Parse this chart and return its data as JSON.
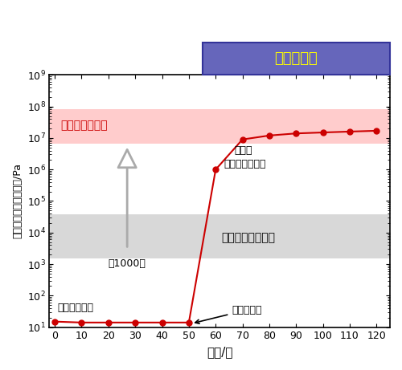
{
  "x": [
    0,
    10,
    20,
    30,
    40,
    50,
    60,
    70,
    80,
    90,
    100,
    110,
    120
  ],
  "y": [
    15,
    14,
    14,
    14,
    14,
    14,
    1000000,
    9000000,
    12000000,
    14000000,
    15000000,
    16000000,
    17000000
  ],
  "xlabel": "时间/秒",
  "ylabel": "储能模量（硬度指标）/Pa",
  "xticks": [
    0,
    10,
    20,
    30,
    40,
    50,
    60,
    70,
    80,
    90,
    100,
    110,
    120
  ],
  "ylim_low": 10,
  "ylim_high": 1000000000.0,
  "xlim_low": -2,
  "xlim_high": 125,
  "line_color": "#cc0000",
  "marker_color": "#cc0000",
  "bg_color": "#ffffff",
  "new_hardness_band_ylow": 6500000,
  "new_hardness_band_yhigh": 80000000.0,
  "new_hardness_band_color": "#ffcccc",
  "old_hardness_band_ylow": 1500,
  "old_hardness_band_yhigh": 38000,
  "old_hardness_band_color": "#d8d8d8",
  "light_band_xstart": 55,
  "light_band_color": "#6666bb",
  "light_label": "照射可见光",
  "light_label_color": "#ffff00",
  "label_new_hardness": "新混合物的硬度",
  "label_old_hardness": "以往混合物的硬度",
  "label_mixture_1": "混合物",
  "label_mixture_2": "（液晶＋树脂）",
  "label_photopoly": "光聚合性成分",
  "label_start_cure": "开始光固化",
  "label_magnify": "約1000倍",
  "new_hardness_label_color": "#cc0000",
  "old_hardness_label_color": "#000000",
  "fig_width": 5.0,
  "fig_height": 4.61,
  "dpi": 100
}
